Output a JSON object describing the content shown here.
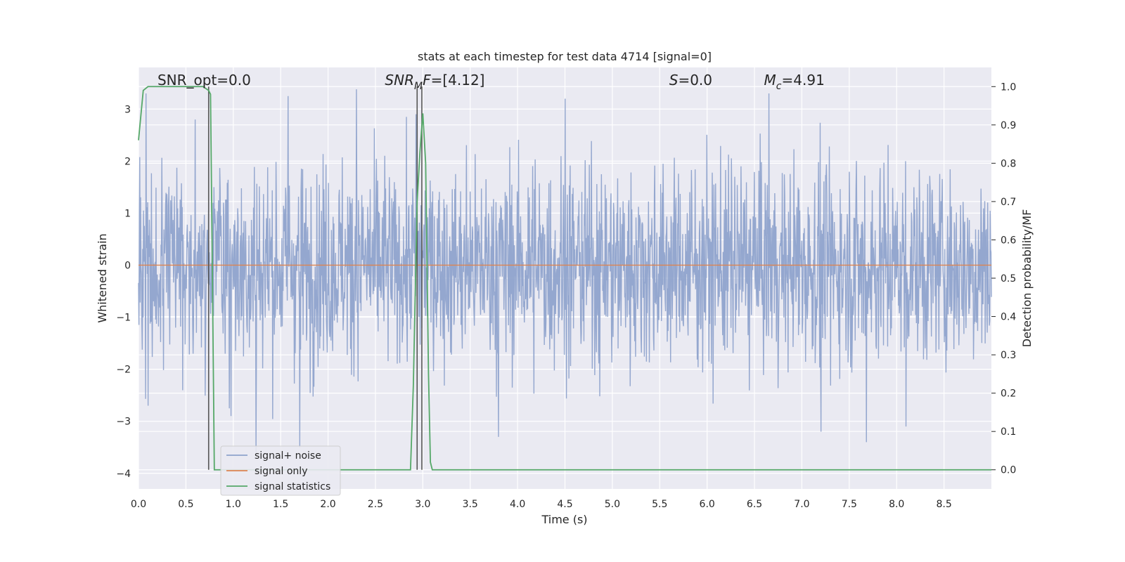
{
  "chart_data": {
    "type": "line",
    "title": "stats at each timestep for test data 4714 [signal=0]",
    "xlabel": "Time (s)",
    "ylabel": "Whitened strain",
    "y2label": "Detection probability/MF",
    "xlim": [
      0.0,
      9.0
    ],
    "ylim": [
      -4.3,
      3.8
    ],
    "y2lim": [
      -0.05,
      1.05
    ],
    "xticks": [
      "0.0",
      "0.5",
      "1.0",
      "1.5",
      "2.0",
      "2.5",
      "3.0",
      "3.5",
      "4.0",
      "4.5",
      "5.0",
      "5.5",
      "6.0",
      "6.5",
      "7.0",
      "7.5",
      "8.0",
      "8.5"
    ],
    "yticks": [
      "3",
      "2",
      "1",
      "0",
      "−1",
      "−2",
      "−3",
      "−4"
    ],
    "y2ticks": [
      "1.0",
      "0.9",
      "0.8",
      "0.7",
      "0.6",
      "0.5",
      "0.4",
      "0.3",
      "0.2",
      "0.1",
      "0.0"
    ],
    "grid": true,
    "legend_position": "lower-left",
    "series": [
      {
        "name": "signal+ noise",
        "color": "#8fa3cc",
        "axis": "left",
        "style": "noise",
        "n_points": 2048,
        "amplitude_std": 0.95,
        "extremes": [
          {
            "x": 0.08,
            "y": 3.3
          },
          {
            "x": 0.6,
            "y": 2.8
          },
          {
            "x": 1.58,
            "y": 3.25
          },
          {
            "x": 2.3,
            "y": 3.38
          },
          {
            "x": 2.93,
            "y": 2.9
          },
          {
            "x": 4.5,
            "y": 3.2
          },
          {
            "x": 6.65,
            "y": 3.3
          },
          {
            "x": 0.1,
            "y": -2.7
          },
          {
            "x": 1.24,
            "y": -3.6
          },
          {
            "x": 1.7,
            "y": -3.5
          },
          {
            "x": 3.8,
            "y": -3.3
          },
          {
            "x": 7.68,
            "y": -3.4
          },
          {
            "x": 7.2,
            "y": -3.2
          },
          {
            "x": 8.1,
            "y": -3.1
          }
        ]
      },
      {
        "name": "signal only",
        "color": "#dd8452",
        "axis": "left",
        "x": [
          0.0,
          9.0
        ],
        "y": [
          0.0,
          0.0
        ]
      },
      {
        "name": "signal statistics",
        "color": "#55a868",
        "axis": "right",
        "x": [
          0.0,
          0.05,
          0.1,
          0.2,
          0.5,
          0.68,
          0.74,
          0.76,
          0.78,
          0.8,
          1.0,
          2.5,
          2.87,
          2.9,
          2.94,
          2.97,
          3.0,
          3.03,
          3.06,
          3.08,
          3.1,
          3.5,
          9.0
        ],
        "y": [
          0.86,
          0.99,
          1.0,
          1.0,
          1.0,
          1.0,
          0.99,
          0.98,
          0.5,
          0.0,
          0.0,
          0.0,
          0.0,
          0.22,
          0.7,
          0.83,
          0.93,
          0.8,
          0.25,
          0.02,
          0.0,
          0.0,
          0.0
        ]
      }
    ],
    "vlines": [
      {
        "x": 0.74,
        "y_top": 1.0,
        "color": "#555555"
      },
      {
        "x": 2.94,
        "y_top": 1.0,
        "color": "#555555"
      },
      {
        "x": 2.99,
        "y_top": 1.0,
        "color": "#555555"
      }
    ],
    "annotations": [
      {
        "text": "SNR_opt=0.0",
        "x": 0.2,
        "style": "plain"
      },
      {
        "text": "SNR",
        "sub": "M",
        "after": "F=[4.12]",
        "x": 2.6,
        "style": "italic-sub"
      },
      {
        "text": "S",
        "sub": "",
        "after": "=0.0",
        "x": 5.6,
        "style": "italic-sub"
      },
      {
        "text": "M",
        "sub": "c",
        "after": "=4.91",
        "x": 6.6,
        "style": "italic-sub"
      }
    ]
  }
}
